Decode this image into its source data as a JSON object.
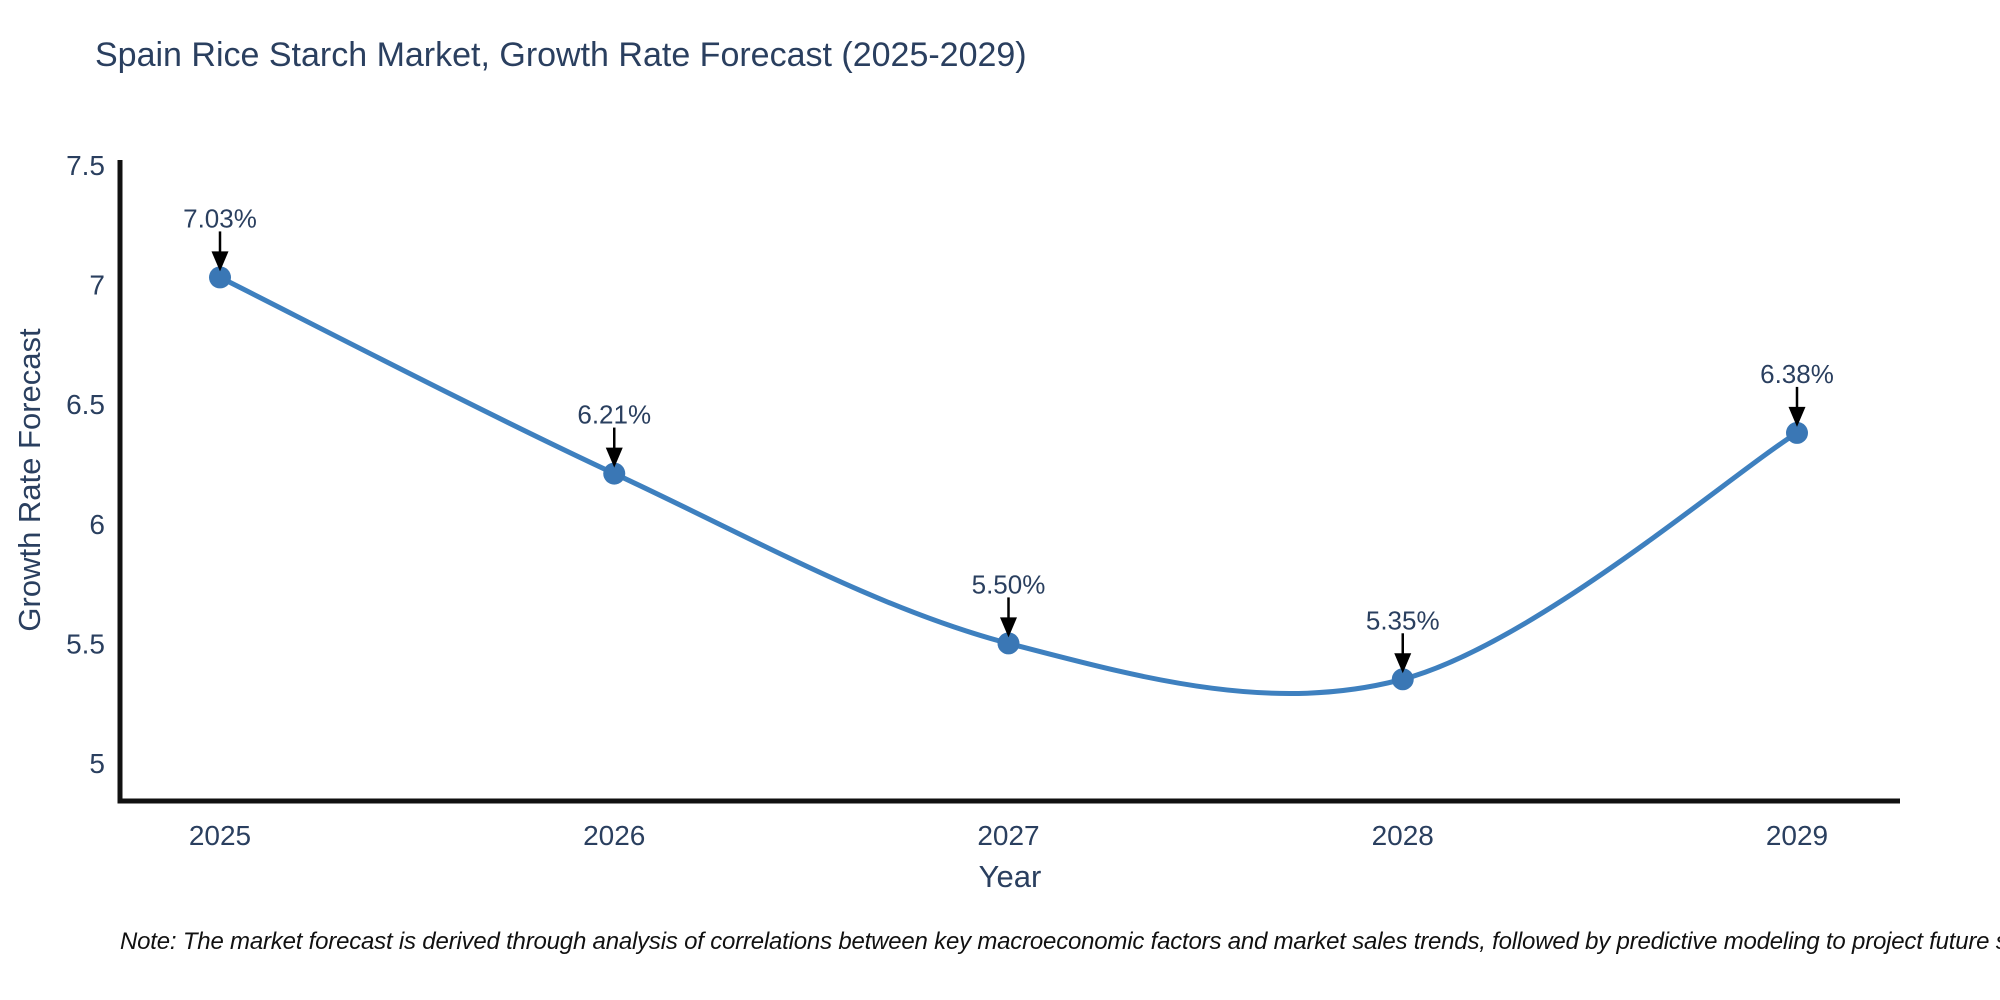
{
  "title": "Spain Rice Starch Market, Growth Rate Forecast (2025-2029)",
  "note": "Note: The market forecast is derived through analysis of correlations between key macroeconomic factors and market sales trends, followed by predictive modeling to project future sales",
  "chart_data": {
    "type": "line",
    "title": "Spain Rice Starch Market, Growth Rate Forecast (2025-2029)",
    "x": [
      "2025",
      "2026",
      "2027",
      "2028",
      "2029"
    ],
    "series": [
      {
        "name": "Growth Rate Forecast",
        "values": [
          7.03,
          6.21,
          5.5,
          5.35,
          6.38
        ],
        "point_labels": [
          "7.03%",
          "6.21%",
          "5.50%",
          "5.35%",
          "6.38%"
        ]
      }
    ],
    "xlabel": "Year",
    "ylabel": "Growth Rate Forecast",
    "y_tick_labels": [
      "7.5",
      "7",
      "6.5",
      "6",
      "5.5",
      "5"
    ],
    "y_tick_values": [
      7.5,
      7.0,
      6.5,
      6.0,
      5.5,
      5.0
    ],
    "ylim": [
      4.85,
      7.52
    ],
    "line_shape": "spline",
    "grid": false,
    "legend_position": "none",
    "markers": true,
    "annotations_with_arrows": true,
    "colors": {
      "line": "#3e80bf",
      "marker": "#3a77b5",
      "axis": "#111111",
      "text": "#2a3f5f",
      "arrow": "#000000"
    }
  }
}
